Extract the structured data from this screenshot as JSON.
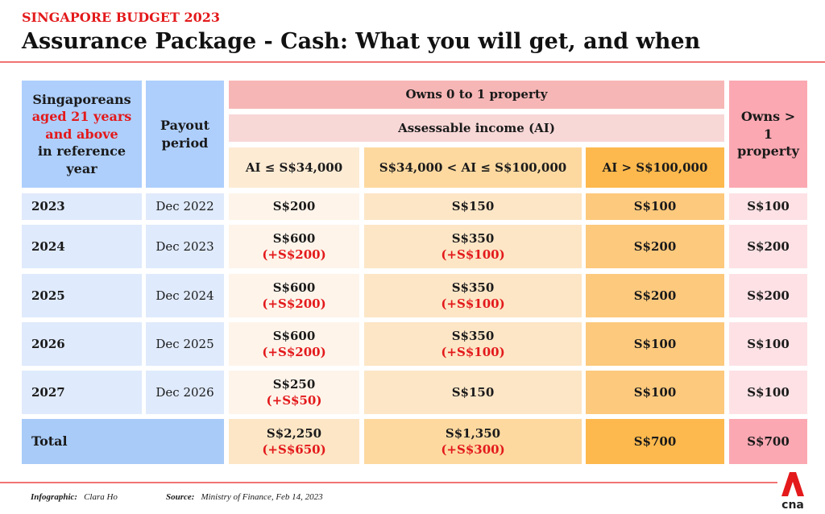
{
  "header": {
    "kicker": "SINGAPORE BUDGET 2023",
    "title": "Assurance Package - Cash: What you will get, and when"
  },
  "table": {
    "col1_header": {
      "part1": "Singaporeans",
      "part2_red": "aged 21 years and above",
      "part3": "in reference year"
    },
    "col2_header": "Payout period",
    "group_header": "Owns 0 to 1 property",
    "subgroup_header": "Assessable income (AI)",
    "ai_headers": [
      "AI ≤ S$34,000",
      "S$34,000 < AI ≤ S$100,000",
      "AI > S$100,000"
    ],
    "col6_header": "Owns > 1 property",
    "rows": [
      {
        "year": "2023",
        "period": "Dec 2022",
        "low": [
          "S$200",
          ""
        ],
        "mid": [
          "S$150",
          ""
        ],
        "high": "S$100",
        "multi": "S$100"
      },
      {
        "year": "2024",
        "period": "Dec 2023",
        "low": [
          "S$600",
          "(+S$200)"
        ],
        "mid": [
          "S$350",
          "(+S$100)"
        ],
        "high": "S$200",
        "multi": "S$200"
      },
      {
        "year": "2025",
        "period": "Dec 2024",
        "low": [
          "S$600",
          "(+S$200)"
        ],
        "mid": [
          "S$350",
          "(+S$100)"
        ],
        "high": "S$200",
        "multi": "S$200"
      },
      {
        "year": "2026",
        "period": "Dec 2025",
        "low": [
          "S$600",
          "(+S$200)"
        ],
        "mid": [
          "S$350",
          "(+S$100)"
        ],
        "high": "S$100",
        "multi": "S$100"
      },
      {
        "year": "2027",
        "period": "Dec 2026",
        "low": [
          "S$250",
          "(+S$50)"
        ],
        "mid": [
          "S$150",
          ""
        ],
        "high": "S$100",
        "multi": "S$100"
      }
    ],
    "total": {
      "label": "Total",
      "low": [
        "S$2,250",
        "(+S$650)"
      ],
      "mid": [
        "S$1,350",
        "(+S$300)"
      ],
      "high": "S$700",
      "multi": "S$700"
    }
  },
  "footer": {
    "infographic_label": "Infographic:",
    "infographic_value": "Clara Ho",
    "source_label": "Source:",
    "source_value": "Ministry of Finance, Feb 14, 2023",
    "logo": "cna"
  },
  "colors": {
    "accent_red": "#e3191b",
    "header_blue": "#aecffc",
    "row_blue": "#dfeafc",
    "pink": "#f7b6b6",
    "orange_high": "#fdb94d"
  }
}
